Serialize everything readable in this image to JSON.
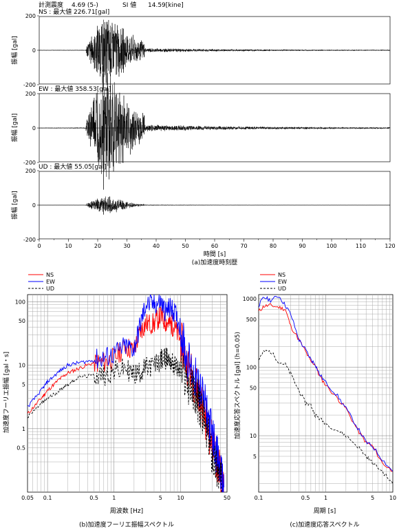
{
  "header": {
    "intensity_label": "計測震度",
    "intensity_value": "4.69 (5-)",
    "si_label": "SI 値",
    "si_value": "14.59[kine]"
  },
  "time_history": {
    "y_label": "振幅 [gal]",
    "x_label": "時間 [s]",
    "caption": "(a)加速度時刻歴",
    "x_ticks": [
      0,
      10,
      20,
      30,
      40,
      50,
      60,
      70,
      80,
      90,
      100,
      110,
      120
    ],
    "y_ticks": [
      -200,
      0,
      200
    ],
    "components": [
      {
        "name": "NS",
        "max_text": "最大値",
        "max_value": "226.71[gal]",
        "amp": 226.71
      },
      {
        "name": "EW",
        "max_text": "最大値",
        "max_value": "358.53[gal]",
        "amp": 358.53
      },
      {
        "name": "UD",
        "max_text": "最大値",
        "max_value": "55.05[gal]",
        "amp": 55.05
      }
    ]
  },
  "fourier": {
    "y_label": "加速度フーリエ振幅 [gal・s]",
    "x_label": "周波数 [Hz]",
    "caption": "(b)加速度フーリエ振幅スペクトル",
    "legend": [
      "NS",
      "EW",
      "UD"
    ],
    "x_tick_labels": [
      [
        0.05,
        "0.05"
      ],
      [
        0.1,
        "0.1"
      ],
      [
        0.5,
        "0.5"
      ],
      [
        1,
        "1"
      ],
      [
        5,
        "5"
      ],
      [
        10,
        "10"
      ],
      [
        50,
        "50"
      ]
    ],
    "y_tick_labels": [
      [
        0.5,
        "0.5"
      ],
      [
        1,
        "1"
      ],
      [
        5,
        "5"
      ],
      [
        10,
        "10"
      ],
      [
        50,
        "50"
      ],
      [
        100,
        "100"
      ]
    ]
  },
  "response": {
    "y_label": "加速度応答スペクトル [gal] (h=0.05)",
    "x_label": "周期 [s]",
    "caption": "(c)加速度応答スペクトル",
    "legend": [
      "NS",
      "EW",
      "UD"
    ],
    "x_tick_labels": [
      [
        0.1,
        "0.1"
      ],
      [
        0.5,
        "0.5"
      ],
      [
        1,
        "1"
      ],
      [
        5,
        "5"
      ],
      [
        10,
        "10"
      ]
    ],
    "y_tick_labels": [
      [
        5,
        "5"
      ],
      [
        10,
        "10"
      ],
      [
        50,
        "50"
      ],
      [
        100,
        "100"
      ],
      [
        500,
        "500"
      ],
      [
        1000,
        "1000"
      ]
    ]
  },
  "colors": {
    "NS": "#ff0000",
    "EW": "#0000ff",
    "UD": "#000000"
  },
  "chart_data": [
    {
      "type": "line",
      "title": "(a)加速度時刻歴",
      "xlabel": "時間 [s]",
      "ylabel": "振幅 [gal]",
      "xlim": [
        0,
        120
      ],
      "ylim": [
        -350,
        350
      ],
      "series": [
        {
          "name": "NS",
          "peak_abs": 226.71,
          "peak_time": 22,
          "strong_motion": [
            16,
            45
          ]
        },
        {
          "name": "EW",
          "peak_abs": 358.53,
          "peak_time": 22,
          "strong_motion": [
            16,
            45
          ]
        },
        {
          "name": "UD",
          "peak_abs": 55.05,
          "peak_time": 22,
          "strong_motion": [
            16,
            35
          ]
        }
      ]
    },
    {
      "type": "line",
      "title": "(b)加速度フーリエ振幅スペクトル",
      "xlabel": "周波数 [Hz]",
      "ylabel": "加速度フーリエ振幅 [gal・s]",
      "xscale": "log",
      "yscale": "log",
      "xlim": [
        0.05,
        50
      ],
      "ylim": [
        0.1,
        130
      ],
      "grid": true,
      "legend_position": "top-left",
      "series": [
        {
          "name": "NS",
          "x": [
            0.05,
            0.08,
            0.1,
            0.15,
            0.2,
            0.3,
            0.5,
            0.7,
            1,
            1.5,
            2,
            2.5,
            3,
            4,
            5,
            6,
            7,
            8,
            10,
            12,
            15,
            18,
            20,
            25,
            30,
            35,
            40,
            45
          ],
          "y": [
            1.7,
            3,
            4,
            6,
            7.5,
            9,
            11,
            11,
            13,
            20,
            17,
            35,
            45,
            45,
            60,
            48,
            45,
            40,
            25,
            12,
            7,
            4,
            3,
            1.2,
            0.6,
            0.3,
            0.2,
            0.12
          ]
        },
        {
          "name": "EW",
          "x": [
            0.05,
            0.08,
            0.1,
            0.15,
            0.2,
            0.3,
            0.5,
            0.7,
            1,
            1.5,
            2,
            2.5,
            3,
            4,
            5,
            6,
            7,
            8,
            10,
            12,
            15,
            18,
            20,
            25,
            30,
            35,
            40,
            45
          ],
          "y": [
            2.2,
            4,
            5.5,
            8,
            10,
            11,
            12,
            13,
            15,
            20,
            18,
            45,
            90,
            90,
            100,
            70,
            80,
            70,
            40,
            15,
            8,
            5,
            4,
            1.8,
            0.8,
            0.4,
            0.2,
            0.12
          ]
        },
        {
          "name": "UD",
          "x": [
            0.05,
            0.08,
            0.1,
            0.15,
            0.2,
            0.3,
            0.5,
            0.7,
            1,
            1.5,
            2,
            2.5,
            3,
            4,
            5,
            6,
            7,
            8,
            10,
            12,
            15,
            18,
            20,
            25,
            30,
            35,
            40,
            45
          ],
          "y": [
            1.5,
            2.5,
            3,
            4,
            5,
            6.5,
            7,
            7,
            8,
            9,
            7,
            8,
            9,
            10,
            12,
            13,
            12,
            10,
            8,
            6,
            4,
            3,
            2,
            0.8,
            0.4,
            0.25,
            0.15,
            0.1
          ]
        }
      ]
    },
    {
      "type": "line",
      "title": "(c)加速度応答スペクトル",
      "xlabel": "周期 [s]",
      "ylabel": "加速度応答スペクトル [gal] (h=0.05)",
      "xscale": "log",
      "yscale": "log",
      "xlim": [
        0.1,
        10
      ],
      "ylim": [
        1.5,
        1150
      ],
      "grid": true,
      "legend_position": "top-right",
      "series": [
        {
          "name": "NS",
          "x": [
            0.1,
            0.12,
            0.15,
            0.2,
            0.25,
            0.3,
            0.4,
            0.5,
            0.6,
            0.7,
            0.8,
            1,
            1.5,
            2,
            3,
            4,
            5,
            7,
            10
          ],
          "y": [
            650,
            780,
            800,
            750,
            700,
            400,
            250,
            170,
            120,
            110,
            75,
            55,
            35,
            25,
            12,
            8,
            7,
            4,
            3
          ]
        },
        {
          "name": "EW",
          "x": [
            0.1,
            0.12,
            0.15,
            0.2,
            0.25,
            0.3,
            0.4,
            0.5,
            0.6,
            0.7,
            0.8,
            1,
            1.5,
            2,
            3,
            4,
            5,
            7,
            10
          ],
          "y": [
            800,
            1050,
            950,
            1100,
            800,
            600,
            250,
            180,
            130,
            110,
            80,
            60,
            38,
            25,
            13,
            8,
            7,
            4.5,
            3
          ]
        },
        {
          "name": "UD",
          "x": [
            0.1,
            0.12,
            0.15,
            0.2,
            0.25,
            0.3,
            0.4,
            0.5,
            0.6,
            0.7,
            0.8,
            1,
            1.5,
            2,
            3,
            4,
            5,
            7,
            10
          ],
          "y": [
            130,
            170,
            170,
            120,
            110,
            80,
            45,
            30,
            28,
            20,
            18,
            15,
            12,
            10,
            7,
            5,
            4,
            3,
            2
          ]
        }
      ]
    }
  ]
}
